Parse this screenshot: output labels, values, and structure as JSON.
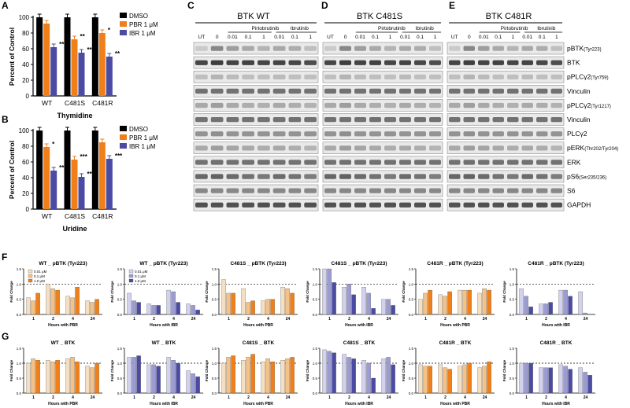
{
  "panel_letters": {
    "a": "A",
    "b": "B",
    "c": "C",
    "d": "D",
    "e": "E",
    "f": "F",
    "g": "G"
  },
  "colors": {
    "dmso": "#000000",
    "pbr": "#f07f1a",
    "ibr": "#4b4ba3",
    "pbr_light": "#f5dfc2",
    "pbr_mid": "#f4c287",
    "ibr_light": "#d2d2ee",
    "ibr_mid": "#9c9cd3"
  },
  "legend_ab": [
    "DMSO",
    "PBR 1 μM",
    "IBR 1 μM"
  ],
  "legend_f_pbr": [
    "0.01 μM",
    "0.1 μM",
    "1.0 μM"
  ],
  "legend_f_ibr": [
    "0.01 μM",
    "0.1 μM",
    "1.0 μM"
  ],
  "chart_data": [
    {
      "id": "A",
      "type": "bar",
      "title": "",
      "xlabel": "Thymidine",
      "ylabel": "Percent of Control",
      "ylim": [
        0,
        100
      ],
      "yticks": [
        "0",
        "20",
        "40",
        "60",
        "80",
        "100"
      ],
      "categories": [
        "WT",
        "C481S",
        "C481R"
      ],
      "series": [
        {
          "name": "DMSO",
          "values": [
            100,
            100,
            100
          ]
        },
        {
          "name": "PBR 1 μM",
          "values": [
            92,
            72,
            80
          ]
        },
        {
          "name": "IBR 1 μM",
          "values": [
            62,
            55,
            50
          ]
        }
      ],
      "annotations": [
        [
          "",
          "",
          " **"
        ],
        [
          "",
          "**",
          "**"
        ],
        [
          "",
          "*",
          "**"
        ]
      ],
      "sig": [
        [
          "",
          "",
          "**"
        ],
        [
          "",
          "**",
          "**"
        ],
        [
          "",
          "*",
          "**"
        ]
      ]
    },
    {
      "id": "B",
      "type": "bar",
      "title": "",
      "xlabel": "Uridine",
      "ylabel": "Percent of Control",
      "ylim": [
        0,
        100
      ],
      "yticks": [
        "0",
        "20",
        "40",
        "60",
        "80",
        "100"
      ],
      "categories": [
        "WT",
        "C481S",
        "C481R"
      ],
      "series": [
        {
          "name": "DMSO",
          "values": [
            100,
            100,
            100
          ]
        },
        {
          "name": "PBR 1 μM",
          "values": [
            79,
            63,
            85
          ]
        },
        {
          "name": "IBR 1 μM",
          "values": [
            49,
            41,
            64
          ]
        }
      ],
      "sig": [
        [
          "",
          "*",
          "***"
        ],
        [
          "",
          "***",
          "***"
        ],
        [
          "",
          "",
          "***"
        ]
      ]
    }
  ],
  "blots": {
    "c_title": "BTK WT",
    "d_title": "BTK C481S",
    "e_title": "BTK C481R",
    "drug_pbr": "Pirtobrutinib",
    "drug_ibr": "Ibrutinib",
    "lanes": [
      "UT",
      "0",
      "0.01",
      "0.1",
      "1",
      "0.01",
      "0.1",
      "1"
    ],
    "labels": [
      {
        "main": "pBTK",
        "sub": "(Tyr223)"
      },
      {
        "main": "BTK",
        "sub": ""
      },
      {
        "main": "pPLCγ2",
        "sub": "(Tyr759)"
      },
      {
        "main": "Vinculin",
        "sub": ""
      },
      {
        "main": "pPLCγ2",
        "sub": "(Tyr1217)"
      },
      {
        "main": "Vinculin",
        "sub": ""
      },
      {
        "main": "PLCγ2",
        "sub": ""
      },
      {
        "main": "pERK",
        "sub": "(Thr202/Tyr204)"
      },
      {
        "main": "ERK",
        "sub": ""
      },
      {
        "main": "pS6",
        "sub": "(Ser235/236)"
      },
      {
        "main": "S6",
        "sub": ""
      },
      {
        "main": "GAPDH",
        "sub": ""
      }
    ]
  },
  "fold_charts": {
    "ylabel": "Fold Change",
    "xlabel_pbr": "Hours with PBR",
    "xlabel_ibr": "Hours with IBR",
    "xticks": [
      "1",
      "2",
      "4",
      "24"
    ],
    "yticks": [
      "0.0",
      "0.5",
      "1.0",
      "1.5"
    ],
    "F": [
      {
        "title": "WT _ pBTK (Tyr223)",
        "drug": "pbr",
        "values": [
          [
            0.55,
            0.45,
            0.7
          ],
          [
            1.0,
            0.85,
            0.8
          ],
          [
            0.6,
            0.55,
            0.9
          ],
          [
            0.45,
            0.4,
            0.5
          ]
        ]
      },
      {
        "title": "WT _ pBTK (Tyr223)",
        "drug": "ibr",
        "values": [
          [
            0.7,
            0.45,
            0.4
          ],
          [
            0.35,
            0.3,
            0.3
          ],
          [
            0.8,
            0.75,
            0.4
          ],
          [
            0.35,
            0.3,
            0.15
          ]
        ]
      },
      {
        "title": "C481S _ pBTK (Tyr223)",
        "drug": "pbr",
        "values": [
          [
            1.15,
            0.7,
            0.7
          ],
          [
            0.85,
            0.4,
            0.45
          ],
          [
            0.45,
            0.5,
            0.5
          ],
          [
            0.9,
            0.85,
            0.7
          ]
        ]
      },
      {
        "title": "C481S _ pBTK (Tyr223)",
        "drug": "ibr",
        "values": [
          [
            1.6,
            1.55,
            1.05
          ],
          [
            0.9,
            1.0,
            0.65
          ],
          [
            0.9,
            0.7,
            0.2
          ],
          [
            0.5,
            0.5,
            0.3
          ]
        ]
      },
      {
        "title": "C481R _ pBTK (Tyr223)",
        "drug": "pbr",
        "values": [
          [
            0.5,
            0.7,
            0.8
          ],
          [
            0.65,
            0.6,
            0.75
          ],
          [
            0.8,
            0.8,
            0.8
          ],
          [
            0.7,
            0.85,
            0.8
          ]
        ]
      },
      {
        "title": "C481R _ pBTK (Tyr223)",
        "drug": "ibr",
        "values": [
          [
            0.85,
            0.6,
            0.25
          ],
          [
            0.35,
            0.35,
            0.4
          ],
          [
            0.8,
            0.8,
            0.6
          ],
          [
            0.75,
            0.05,
            0.0
          ]
        ]
      }
    ],
    "G": [
      {
        "title": "WT _ BTK",
        "drug": "pbr",
        "values": [
          [
            1.0,
            1.15,
            1.1
          ],
          [
            1.1,
            1.05,
            1.1
          ],
          [
            1.15,
            1.2,
            1.05
          ],
          [
            0.9,
            0.85,
            1.0
          ]
        ]
      },
      {
        "title": "WT _ BTK",
        "drug": "ibr",
        "values": [
          [
            1.2,
            1.2,
            1.25
          ],
          [
            0.95,
            0.95,
            0.9
          ],
          [
            1.2,
            1.1,
            1.0
          ],
          [
            0.75,
            0.65,
            0.55
          ]
        ]
      },
      {
        "title": "C481S _ BTK",
        "drug": "pbr",
        "values": [
          [
            1.0,
            1.2,
            1.25
          ],
          [
            1.1,
            1.2,
            1.3
          ],
          [
            1.05,
            1.15,
            1.05
          ],
          [
            1.1,
            1.15,
            1.2
          ]
        ]
      },
      {
        "title": "C481S _ BTK",
        "drug": "ibr",
        "values": [
          [
            1.45,
            1.4,
            1.35
          ],
          [
            1.3,
            1.2,
            1.15
          ],
          [
            1.1,
            1.0,
            0.5
          ],
          [
            1.15,
            1.2,
            0.95
          ]
        ]
      },
      {
        "title": "C481R _ BTK",
        "drug": "pbr",
        "values": [
          [
            0.95,
            0.9,
            0.9
          ],
          [
            0.95,
            0.85,
            0.8
          ],
          [
            0.9,
            0.95,
            1.0
          ],
          [
            0.85,
            0.9,
            1.05
          ]
        ]
      },
      {
        "title": "C481R _ BTK",
        "drug": "ibr",
        "values": [
          [
            1.0,
            1.0,
            1.0
          ],
          [
            0.85,
            0.85,
            0.85
          ],
          [
            0.95,
            0.9,
            0.8
          ],
          [
            0.85,
            0.7,
            0.6
          ]
        ]
      }
    ]
  }
}
